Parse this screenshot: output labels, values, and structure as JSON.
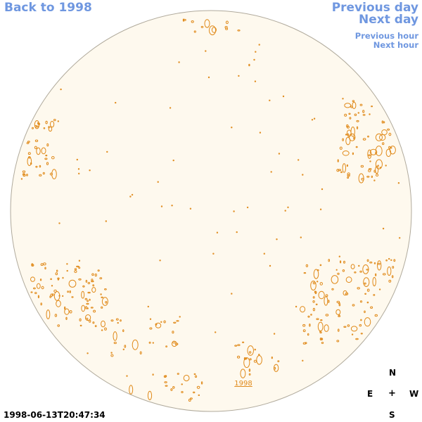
{
  "nav": {
    "back_label": "Back to 1998",
    "prev_day_label": "Previous day",
    "next_day_label": "Next day",
    "prev_hour_label": "Previous hour",
    "next_hour_label": "Next hour"
  },
  "disk": {
    "year_marker": "1998",
    "fill_color": "#fef9ee",
    "border_color": "#b0aa9c",
    "contour_color": "#e08a1a"
  },
  "timestamp": "1998-06-13T20:47:34",
  "compass": {
    "north": "N",
    "east": "E",
    "center": "+",
    "west": "W",
    "south": "S"
  },
  "icons": {
    "compass": "compass-rose-icon"
  }
}
